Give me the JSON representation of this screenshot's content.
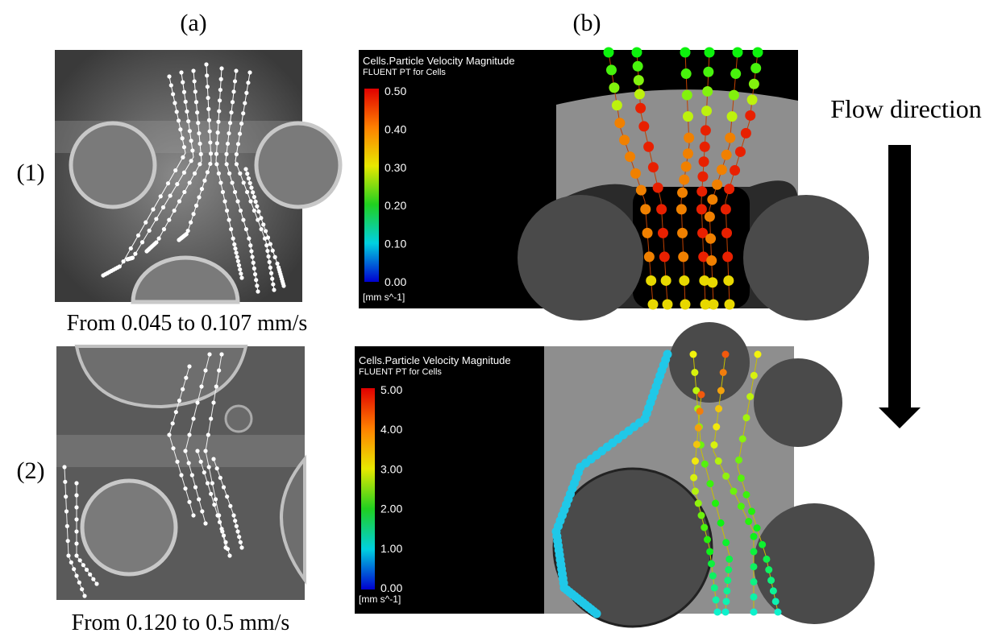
{
  "panel_labels": {
    "a": "(a)",
    "b": "(b)"
  },
  "rows": [
    {
      "label": "(1)",
      "caption": "From 0.045 to 0.107 mm/s",
      "colorbar": {
        "title": "Cells.Particle Velocity Magnitude",
        "subtitle": "FLUENT PT for Cells",
        "ticks": [
          "0.50",
          "0.40",
          "0.30",
          "0.20",
          "0.10",
          "0.00"
        ],
        "unit": "[mm s^-1]"
      }
    },
    {
      "label": "(2)",
      "caption": "From 0.120 to 0.5 mm/s",
      "colorbar": {
        "title": "Cells.Particle Velocity Magnitude",
        "subtitle": "FLUENT PT for Cells",
        "ticks": [
          "5.00",
          "4.00",
          "3.00",
          "2.00",
          "1.00",
          "0.00"
        ],
        "unit": "[mm s^-1]"
      }
    }
  ],
  "flow_label": "Flow direction"
}
